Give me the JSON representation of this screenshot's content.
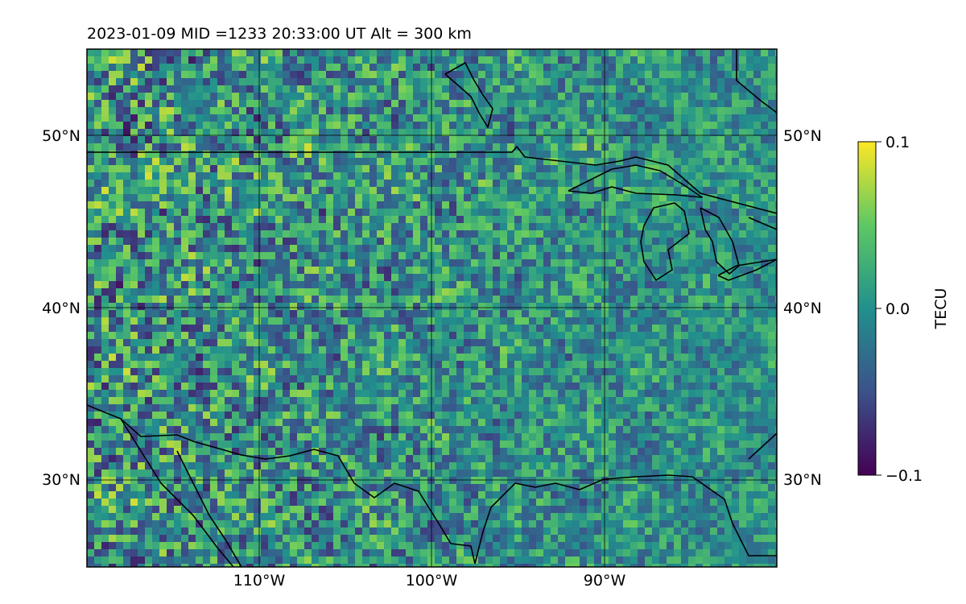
{
  "title": "2023-01-09  MID =1233    20:33:00  UT  Alt = 300 km",
  "map": {
    "lon_range": [
      -120,
      -80
    ],
    "lat_range": [
      25,
      55
    ],
    "gridlines": {
      "lons": [
        -110,
        -100,
        -90
      ],
      "lats": [
        30,
        40,
        50
      ]
    },
    "lon_labels": [
      "110°W",
      "100°W",
      "90°W"
    ],
    "lat_labels_left": [
      "50°N",
      "40°N",
      "30°N"
    ],
    "lat_labels_right": [
      "50°N",
      "40°N",
      "30°N"
    ],
    "colormap": "viridis"
  },
  "colorbar": {
    "label": "TECU",
    "ticks": [
      "0.1",
      "0.0",
      "−0.1"
    ],
    "range": [
      -0.1,
      0.1
    ]
  },
  "colors": {
    "viridis": [
      "#440154",
      "#3b528b",
      "#21908d",
      "#5dc863",
      "#fde725"
    ],
    "grid": "#000000",
    "coast": "#000000"
  }
}
